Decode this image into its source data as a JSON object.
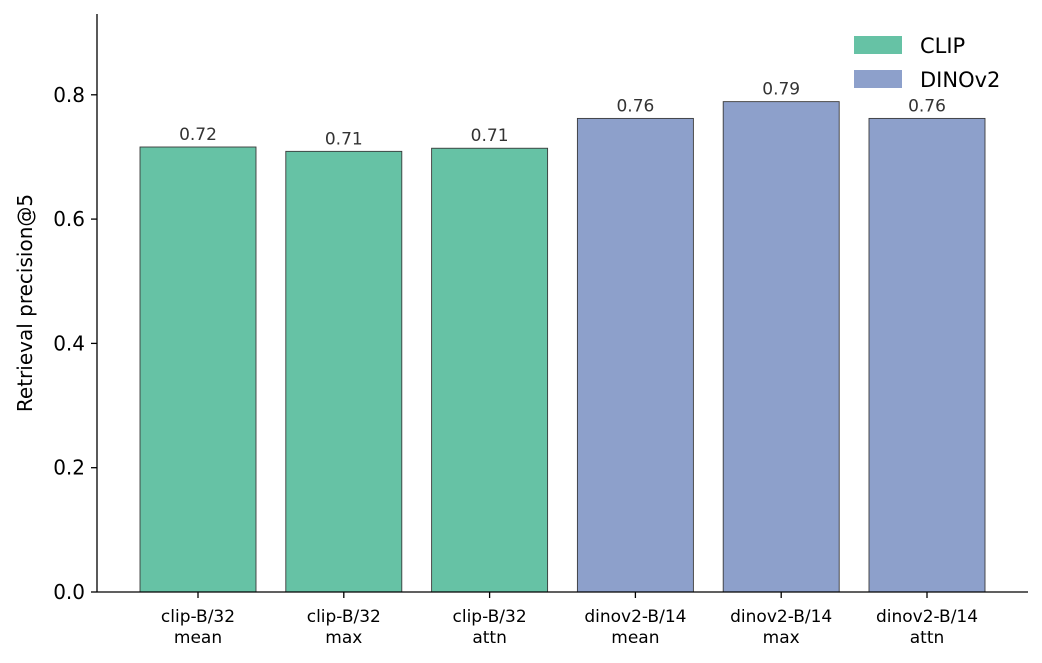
{
  "chart_data": {
    "type": "bar",
    "categories": [
      [
        "clip-B/32",
        "mean"
      ],
      [
        "clip-B/32",
        "max"
      ],
      [
        "clip-B/32",
        "attn"
      ],
      [
        "dinov2-B/14",
        "mean"
      ],
      [
        "dinov2-B/14",
        "max"
      ],
      [
        "dinov2-B/14",
        "attn"
      ]
    ],
    "values": [
      0.716,
      0.709,
      0.714,
      0.762,
      0.789,
      0.762
    ],
    "value_labels": [
      "0.72",
      "0.71",
      "0.71",
      "0.76",
      "0.79",
      "0.76"
    ],
    "bar_groups": [
      "CLIP",
      "CLIP",
      "CLIP",
      "DINOv2",
      "DINOv2",
      "DINOv2"
    ],
    "legend": [
      {
        "name": "CLIP",
        "color": "#66c2a5"
      },
      {
        "name": "DINOv2",
        "color": "#8da0cb"
      }
    ],
    "legend_position": "top-right",
    "title": "",
    "xlabel": "",
    "ylabel": "Retrieval precision@5",
    "ylim": [
      0,
      0.93
    ],
    "yticks": [
      "0.0",
      "0.2",
      "0.4",
      "0.6",
      "0.8"
    ],
    "grid": false
  }
}
